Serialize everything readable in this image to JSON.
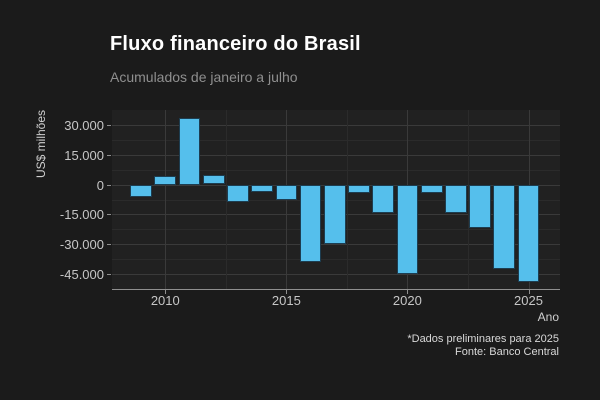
{
  "header": {
    "title": "Fluxo financeiro do Brasil",
    "subtitle": "Acumulados de janeiro a julho"
  },
  "caption": {
    "line1": "*Dados preliminares para 2025",
    "line2": "Fonte: Banco Central"
  },
  "chart_data": {
    "type": "bar",
    "title": "Fluxo financeiro do Brasil",
    "subtitle": "Acumulados de janeiro a julho",
    "xlabel": "Ano",
    "ylabel": "US$ milhões",
    "x": [
      2009,
      2010,
      2011,
      2012,
      2013,
      2014,
      2015,
      2016,
      2017,
      2018,
      2019,
      2020,
      2021,
      2022,
      2023,
      2024,
      2025
    ],
    "values": [
      -6200,
      4200,
      33300,
      4700,
      -8700,
      -3900,
      -7900,
      -38700,
      -30000,
      -4200,
      -14200,
      -44900,
      -4500,
      -14500,
      -21700,
      -42600,
      -49000
    ],
    "x_ticks": [
      2010,
      2015,
      2020,
      2025
    ],
    "x_tick_labels": [
      "2010",
      "2015",
      "2020",
      "2025"
    ],
    "x_minor_ticks": [
      2012.5,
      2017.5,
      2022.5
    ],
    "y_ticks": [
      30000,
      15000,
      0,
      -15000,
      -30000,
      -45000
    ],
    "y_tick_labels": [
      "30.000",
      "15.000",
      "0",
      "-15.000",
      "-30.000",
      "-45.000"
    ],
    "xlim": [
      2007.8,
      2026.3
    ],
    "ylim": [
      -52500,
      37500
    ],
    "grid": true,
    "legend": "none",
    "bar_color": "#55bfec",
    "bar_border_color": "#1d3d50",
    "background_color": "#1b1b1b",
    "panel_color": "#212121"
  }
}
